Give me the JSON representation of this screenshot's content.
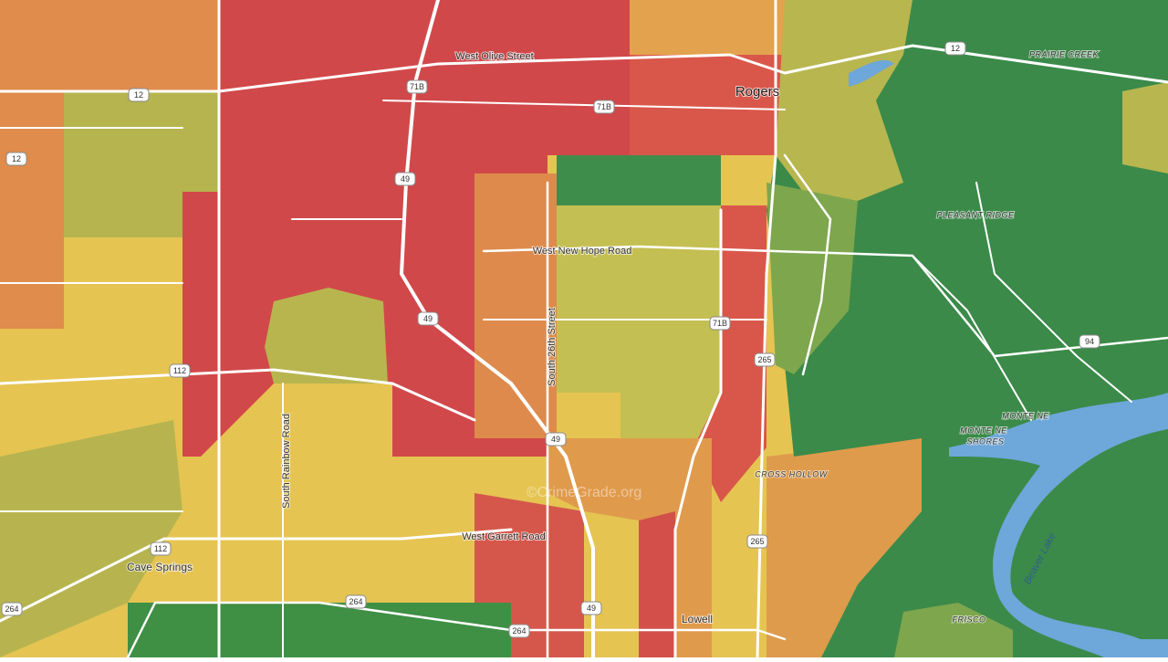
{
  "labels": {
    "west_olive_street": "West Olive Street",
    "rogers": "Rogers",
    "prairie_creek": "PRAIRIE CREEK",
    "west_new_hope_road": "West New Hope Road",
    "pleasant_ridge": "PLEASANT RIDGE",
    "south_26th_street": "South 26th Street",
    "south_rainbow_road": "South Rainbow Road",
    "monte_ne": "MONTE NE",
    "monte_ne_shores": [
      "MONTE NE",
      "SHORES"
    ],
    "cross_hollow": "CROSS HOLLOW",
    "watermark": "©CrimeGrade.org",
    "west_garrett_road": "West Garrett Road",
    "cave_springs": "Cave Springs",
    "beaver_lake": "Beaver Lake",
    "frisco": "FRISCO",
    "lowell": "Lowell"
  },
  "shields": [
    "12",
    "12",
    "12",
    "71B",
    "71B",
    "71B",
    "49",
    "49",
    "49",
    "49",
    "112",
    "112",
    "265",
    "265",
    "264",
    "264",
    "264",
    "94"
  ]
}
